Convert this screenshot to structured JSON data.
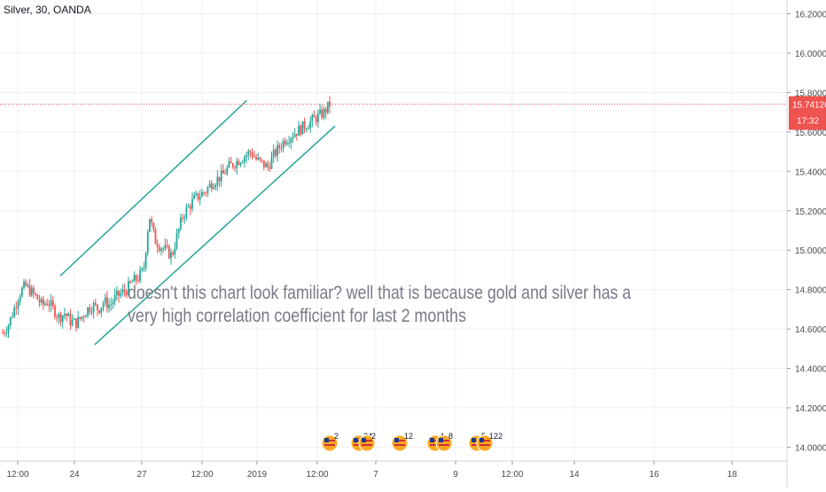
{
  "header": {
    "title": "Silver, 30, OANDA"
  },
  "price_tag": {
    "price": "15.74126",
    "countdown": "17:32"
  },
  "annotation": {
    "lines": [
      "doesn't this chart look familiar? well that is because gold and silver has a",
      "very high correlation coefficient for last 2 months"
    ]
  },
  "colors": {
    "up": "#26a69a",
    "down": "#ef5350",
    "channel": "#26a69a",
    "price_line": "#ef5350",
    "annotation": "#787b86",
    "grid": "#eef0f3"
  },
  "events": [
    {
      "label": "2",
      "icon": "us-flag-icon"
    },
    {
      "label": "34",
      "icon": "us-flag-icon"
    },
    {
      "label": "2",
      "icon": "us-flag-icon"
    },
    {
      "label": "12",
      "icon": "us-flag-icon"
    },
    {
      "label": "4",
      "icon": "us-flag-icon"
    },
    {
      "label": "8",
      "icon": "us-flag-icon"
    },
    {
      "label": "5",
      "icon": "us-flag-icon"
    },
    {
      "label": "122",
      "icon": "us-flag-icon"
    }
  ],
  "chart_data": {
    "type": "candlestick",
    "title": "Silver, 30, OANDA",
    "y_ticks": [
      14.0,
      14.2,
      14.4,
      14.6,
      14.8,
      15.0,
      15.2,
      15.4,
      15.6,
      15.8,
      16.0,
      16.2
    ],
    "y_tick_labels": [
      "14.00000",
      "14.20000",
      "14.40000",
      "14.60000",
      "14.80000",
      "15.00000",
      "15.20000",
      "15.40000",
      "15.60000",
      "15.80000",
      "16.00000",
      "16.20000"
    ],
    "ylim": [
      13.93,
      16.27
    ],
    "x_tick_labels": [
      "12:00",
      "24",
      "27",
      "12:00",
      "2019",
      "12:00",
      "7",
      "9",
      "12:00",
      "14",
      "16",
      "18"
    ],
    "last_price": 15.74126,
    "grid": true,
    "series_close_path": [
      14.58,
      14.62,
      14.7,
      14.78,
      14.82,
      14.79,
      14.76,
      14.72,
      14.74,
      14.7,
      14.66,
      14.68,
      14.64,
      14.63,
      14.66,
      14.7,
      14.72,
      14.7,
      14.74,
      14.72,
      14.76,
      14.78,
      14.8,
      14.84,
      14.86,
      14.9,
      15.18,
      15.05,
      15.02,
      15.0,
      14.97,
      15.08,
      15.18,
      15.22,
      15.26,
      15.28,
      15.3,
      15.34,
      15.36,
      15.38,
      15.42,
      15.44,
      15.46,
      15.48,
      15.5,
      15.46,
      15.44,
      15.42,
      15.48,
      15.52,
      15.56,
      15.58,
      15.6,
      15.62,
      15.64,
      15.66,
      15.68,
      15.7,
      15.74
    ],
    "channel": [
      {
        "name": "upper",
        "start": [
          0,
          14.87
        ],
        "end": [
          38,
          15.76
        ]
      },
      {
        "name": "lower",
        "start": [
          7,
          14.52
        ],
        "end": [
          56,
          15.63
        ]
      }
    ]
  }
}
